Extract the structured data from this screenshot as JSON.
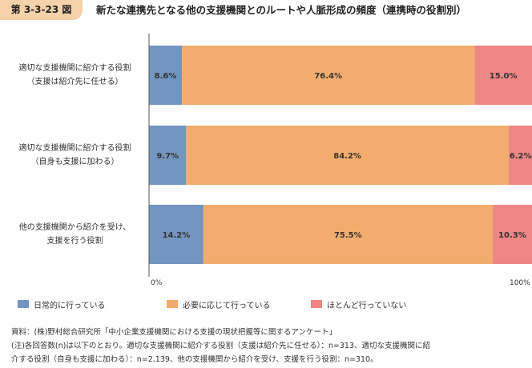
{
  "figure": {
    "number": "第 3-3-23 図",
    "title": "新たな連携先となる他の支援機関とのルートや人脈形成の頻度（連携時の役割別）"
  },
  "chart_data": {
    "type": "bar",
    "orientation": "horizontal",
    "stacked": true,
    "percent": true,
    "categories": [
      [
        "適切な支援機関に紹介する役割",
        "（支援は紹介先に任せる）"
      ],
      [
        "適切な支援機関に紹介する役割",
        "（自身も支援に加わる）"
      ],
      [
        "他の支援機関から紹介を受け、",
        "支援を行う役割"
      ]
    ],
    "series": [
      {
        "name": "日常的に行っている",
        "color": "#7396c0",
        "values": [
          8.6,
          9.7,
          14.2
        ],
        "labels": [
          "8.6%",
          "9.7%",
          "14.2%"
        ]
      },
      {
        "name": "必要に応じて行っている",
        "color": "#f2ad6e",
        "values": [
          76.4,
          84.2,
          75.5
        ],
        "labels": [
          "76.4%",
          "84.2%",
          "75.5%"
        ]
      },
      {
        "name": "ほとんど行っていない",
        "color": "#ee8686",
        "values": [
          15.0,
          6.2,
          10.3
        ],
        "labels": [
          "15.0%",
          "6.2%",
          "10.3%"
        ]
      }
    ],
    "xlim": [
      0,
      100
    ],
    "axis_tick_labels": [
      "0%",
      "100%"
    ],
    "grid": false,
    "legend_position": "bottom"
  },
  "notes": [
    "資料：(株)野村総合研究所「中小企業支援機関における支援の現状把握等に関するアンケート」",
    "(注)各回答数(n)は以下のとおり。適切な支援機関に紹介する役割（支援は紹介先に任せる）：n=313、適切な支援機関に紹",
    "介する役割（自身も支援に加わる）：n=2,139、他の支援機関から紹介を受け、支援を行う役割：n=310。"
  ]
}
